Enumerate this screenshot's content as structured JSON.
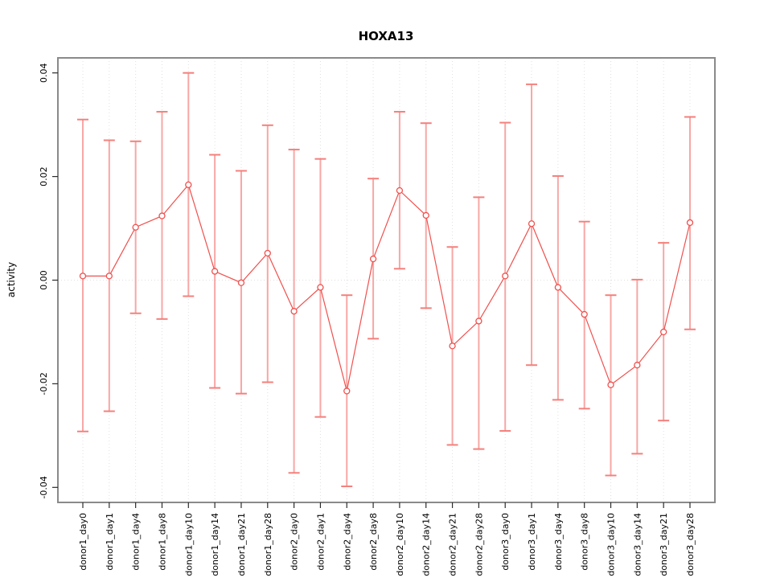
{
  "page": {
    "background_color": "#ffffff",
    "title": "HOXA13"
  },
  "chart_data": {
    "type": "scatter",
    "subtype": "points-with-error-bars-and-connecting-line",
    "title": "HOXA13",
    "xlabel": "",
    "ylabel": "activity",
    "ylim": [
      -0.0429,
      0.0429
    ],
    "yticks": [
      -0.04,
      -0.02,
      0.0,
      0.02,
      0.04
    ],
    "ytick_labels": [
      "-0.04",
      "-0.02",
      "0.00",
      "0.02",
      "0.04"
    ],
    "grid": "light dotted vertical line at every category; light dotted horizontal line at y=0",
    "legend": "none",
    "categories": [
      "donor1_day0",
      "donor1_day1",
      "donor1_day4",
      "donor1_day8",
      "donor1_day10",
      "donor1_day14",
      "donor1_day21",
      "donor1_day28",
      "donor2_day0",
      "donor2_day1",
      "donor2_day4",
      "donor2_day8",
      "donor2_day10",
      "donor2_day14",
      "donor2_day21",
      "donor2_day28",
      "donor3_day0",
      "donor3_day1",
      "donor3_day4",
      "donor3_day8",
      "donor3_day10",
      "donor3_day14",
      "donor3_day21",
      "donor3_day28"
    ],
    "values": [
      0.0008,
      0.0008,
      0.0102,
      0.0124,
      0.0184,
      0.0017,
      -0.0005,
      0.0052,
      -0.006,
      -0.0014,
      -0.0214,
      0.0041,
      0.0173,
      0.0125,
      -0.0127,
      -0.0079,
      0.0008,
      0.0109,
      -0.0014,
      -0.0066,
      -0.0202,
      -0.0164,
      -0.01,
      0.0111
    ],
    "error_upper": [
      0.031,
      0.027,
      0.0268,
      0.0325,
      0.04,
      0.0242,
      0.0211,
      0.0299,
      0.0252,
      0.0234,
      -0.0029,
      0.0196,
      0.0325,
      0.0303,
      0.0064,
      0.016,
      0.0304,
      0.0378,
      0.0201,
      0.0113,
      -0.0029,
      0.0001,
      0.0072,
      0.0315
    ],
    "error_lower": [
      -0.0292,
      -0.0253,
      -0.0064,
      -0.0075,
      -0.0031,
      -0.0208,
      -0.0219,
      -0.0197,
      -0.0372,
      -0.0264,
      -0.0398,
      -0.0113,
      0.0022,
      -0.0054,
      -0.0318,
      -0.0326,
      -0.0291,
      -0.0164,
      -0.0231,
      -0.0248,
      -0.0377,
      -0.0335,
      -0.0271,
      -0.0095
    ],
    "colors": {
      "series_line": "#ef514e",
      "point_stroke": "#ef514e",
      "point_fill": "#ffffff",
      "errorbar_stem": "#f7a7a5",
      "errorbar_cap": "#f4807c",
      "gridline": "#e0e0e0",
      "zero_line": "#e0e0e0",
      "frame": "#8a8a8a",
      "tick": "#2b2b2b",
      "text": "#000000"
    }
  }
}
